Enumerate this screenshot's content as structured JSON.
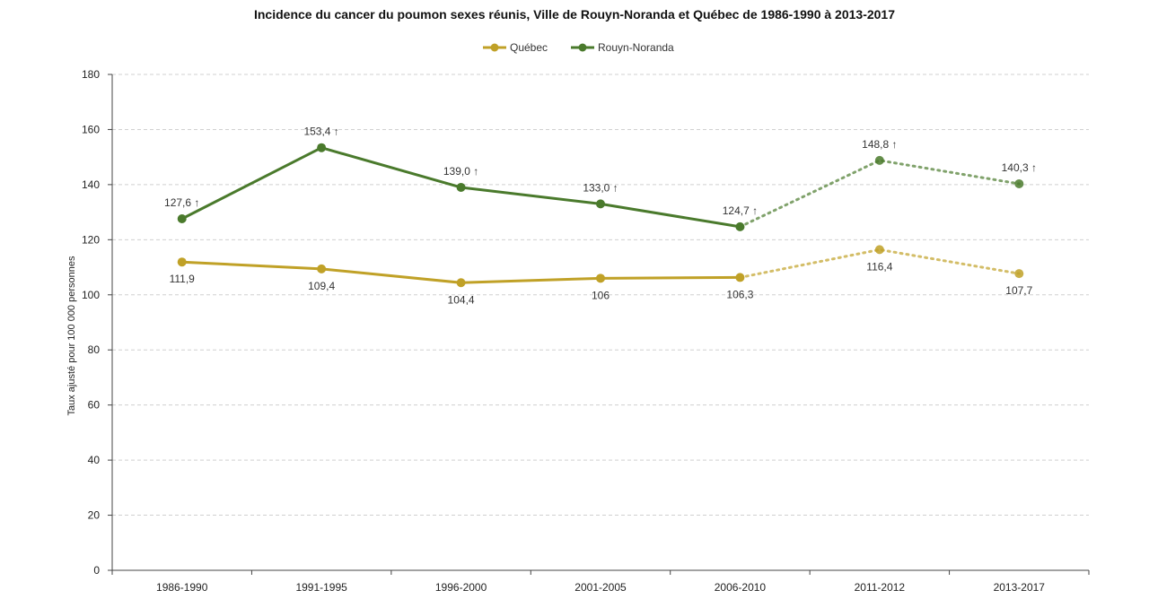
{
  "chart_data": {
    "type": "line",
    "title": "Incidence du cancer du poumon sexes réunis, Ville de Rouyn-Noranda et Québec de 1986-1990 à 2013-2017",
    "xlabel": "",
    "ylabel": "Taux ajusté pour 100 000 personnes",
    "ylim": [
      0,
      180
    ],
    "yticks": [
      0,
      20,
      40,
      60,
      80,
      100,
      120,
      140,
      160,
      180
    ],
    "grid": true,
    "legend_position": "top-center",
    "categories": [
      "1986-1990",
      "1991-1995",
      "1996-2000",
      "2001-2005",
      "2006-2010",
      "2011-2012",
      "2013-2017"
    ],
    "solid_until_index": 4,
    "series": [
      {
        "name": "Québec",
        "color": "#c0a127",
        "values": [
          111.9,
          109.4,
          104.4,
          106,
          106.3,
          116.4,
          107.7
        ],
        "labels": [
          "111,9",
          "109,4",
          "104,4",
          "106",
          "106,3",
          "116,4",
          "107,7"
        ],
        "label_position": "below"
      },
      {
        "name": "Rouyn-Noranda",
        "color": "#4a7a2c",
        "values": [
          127.6,
          153.4,
          139.0,
          133.0,
          124.7,
          148.8,
          140.3
        ],
        "labels": [
          "127,6 ↑",
          "153,4 ↑",
          "139,0 ↑",
          "133,0 ↑",
          "124,7 ↑",
          "148,8 ↑",
          "140,3 ↑"
        ],
        "label_position": "above"
      }
    ]
  }
}
